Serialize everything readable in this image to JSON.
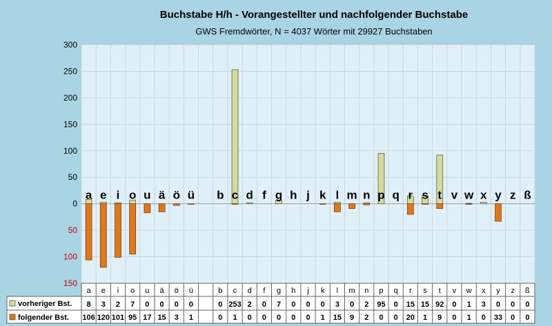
{
  "chart_data": {
    "type": "bar",
    "title": "Buchstabe H/h - Vorangestellter und nachfolgender Buchstabe",
    "subtitle": "GWS Fremdwörter,  N = 4037 Wörter mit 29927 Buchstaben",
    "categories": [
      "a",
      "e",
      "i",
      "o",
      "u",
      "ä",
      "ö",
      "ü",
      "",
      "b",
      "c",
      "d",
      "f",
      "g",
      "h",
      "j",
      "k",
      "l",
      "m",
      "n",
      "p",
      "q",
      "r",
      "s",
      "t",
      "v",
      "w",
      "x",
      "y",
      "z",
      "ß"
    ],
    "series": [
      {
        "name": "vorheriger Bst.",
        "color": "#d4dc9c",
        "values": [
          8,
          3,
          2,
          7,
          0,
          0,
          0,
          0,
          null,
          0,
          253,
          2,
          0,
          7,
          0,
          0,
          0,
          3,
          0,
          2,
          95,
          0,
          15,
          15,
          92,
          0,
          1,
          3,
          0,
          0,
          0
        ]
      },
      {
        "name": "folgender Bst.",
        "color": "#e07818",
        "values": [
          106,
          120,
          101,
          95,
          17,
          15,
          3,
          1,
          null,
          0,
          1,
          0,
          0,
          0,
          0,
          0,
          1,
          15,
          9,
          2,
          0,
          0,
          20,
          1,
          9,
          0,
          1,
          0,
          33,
          0,
          0
        ]
      }
    ],
    "yticks": [
      {
        "value": 300,
        "label": "300",
        "color": "#000000"
      },
      {
        "value": 250,
        "label": "250",
        "color": "#000000"
      },
      {
        "value": 200,
        "label": "200",
        "color": "#000000"
      },
      {
        "value": 150,
        "label": "150",
        "color": "#000000"
      },
      {
        "value": 100,
        "label": "100",
        "color": "#000000"
      },
      {
        "value": 50,
        "label": "50",
        "color": "#000000"
      },
      {
        "value": 0,
        "label": "0",
        "color": "#000000"
      },
      {
        "value": -50,
        "label": "50",
        "color": "#cc0000"
      },
      {
        "value": -100,
        "label": "100",
        "color": "#cc0000"
      },
      {
        "value": -150,
        "label": "150",
        "color": "#cc0000"
      }
    ],
    "ylim": [
      -150,
      300
    ],
    "grid": true,
    "plot_background": "#e0f0f8"
  }
}
